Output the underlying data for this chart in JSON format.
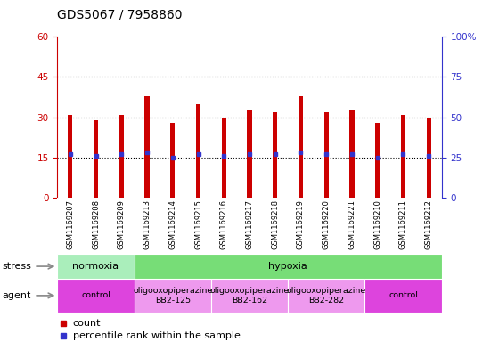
{
  "title": "GDS5067 / 7958860",
  "samples": [
    "GSM1169207",
    "GSM1169208",
    "GSM1169209",
    "GSM1169213",
    "GSM1169214",
    "GSM1169215",
    "GSM1169216",
    "GSM1169217",
    "GSM1169218",
    "GSM1169219",
    "GSM1169220",
    "GSM1169221",
    "GSM1169210",
    "GSM1169211",
    "GSM1169212"
  ],
  "counts": [
    31,
    29,
    31,
    38,
    28,
    35,
    30,
    33,
    32,
    38,
    32,
    33,
    28,
    31,
    30
  ],
  "percentile_ranks": [
    27,
    26,
    27,
    28,
    25,
    27,
    26,
    27,
    27,
    28,
    27,
    27,
    25,
    27,
    26
  ],
  "ylim_left": [
    0,
    60
  ],
  "ylim_right": [
    0,
    100
  ],
  "yticks_left": [
    0,
    15,
    30,
    45,
    60
  ],
  "yticks_right": [
    0,
    25,
    50,
    75,
    100
  ],
  "bar_color": "#cc0000",
  "dot_color": "#3333cc",
  "stress_segments": [
    {
      "label": "normoxia",
      "start": 0,
      "end": 3,
      "color": "#aaeebb"
    },
    {
      "label": "hypoxia",
      "start": 3,
      "end": 15,
      "color": "#77dd77"
    }
  ],
  "agent_segments": [
    {
      "label": "control",
      "start": 0,
      "end": 3,
      "color": "#dd44dd"
    },
    {
      "label": "oligooxopiperazine\nBB2-125",
      "start": 3,
      "end": 6,
      "color": "#ee99ee"
    },
    {
      "label": "oligooxopiperazine\nBB2-162",
      "start": 6,
      "end": 9,
      "color": "#ee99ee"
    },
    {
      "label": "oligooxopiperazine\nBB2-282",
      "start": 9,
      "end": 12,
      "color": "#ee99ee"
    },
    {
      "label": "control",
      "start": 12,
      "end": 15,
      "color": "#dd44dd"
    }
  ],
  "axis_color_left": "#cc0000",
  "axis_color_right": "#3333cc",
  "xtick_bg": "#cccccc"
}
